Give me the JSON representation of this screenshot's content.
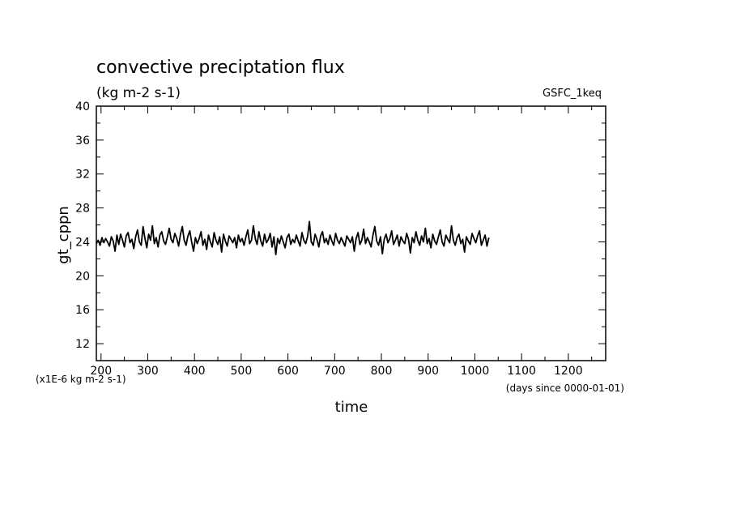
{
  "chart_data": {
    "type": "line",
    "title": "convective preciptation flux",
    "subtitle": "(kg m-2 s-1)",
    "run_label": "GSFC_1keq",
    "xlabel": "time",
    "ylabel": "gt_cppn",
    "x_unit_note": "(days since 0000-01-01)",
    "y_scale_note": "(x1E-6 kg m-2 s-1)",
    "xlim": [
      190,
      1280
    ],
    "ylim": [
      10,
      40
    ],
    "x_ticks": [
      200,
      300,
      400,
      500,
      600,
      700,
      800,
      900,
      1000,
      1100,
      1200
    ],
    "x_tick_labels": [
      "200",
      "300",
      "400",
      "500",
      "600",
      "700",
      "800",
      "900",
      "1000",
      "1100",
      "1200"
    ],
    "y_ticks": [
      12,
      16,
      20,
      24,
      28,
      32,
      36,
      40
    ],
    "y_tick_labels": [
      "12",
      "16",
      "20",
      "24",
      "28",
      "32",
      "36",
      "40"
    ],
    "grid": false,
    "line_color": "#000000",
    "series": [
      {
        "x_start": 190,
        "x_step": 4,
        "values": [
          23.8,
          24.2,
          23.6,
          24.5,
          23.9,
          24.4,
          24.0,
          23.5,
          24.6,
          24.1,
          22.9,
          24.8,
          23.7,
          24.9,
          24.2,
          23.4,
          24.7,
          25.1,
          23.9,
          24.3,
          23.2,
          24.6,
          25.4,
          24.0,
          23.6,
          25.8,
          24.4,
          23.3,
          24.9,
          24.2,
          25.9,
          23.8,
          24.5,
          23.4,
          24.8,
          25.2,
          24.1,
          23.7,
          24.6,
          25.6,
          24.3,
          23.9,
          25.0,
          24.4,
          23.5,
          24.9,
          25.8,
          24.2,
          23.6,
          24.7,
          25.3,
          24.0,
          22.9,
          24.5,
          23.8,
          24.4,
          25.2,
          23.6,
          24.3,
          23.1,
          24.8,
          24.0,
          23.4,
          25.1,
          24.2,
          23.7,
          24.6,
          22.8,
          24.9,
          24.1,
          23.5,
          24.7,
          24.3,
          23.9,
          24.5,
          23.3,
          24.8,
          24.0,
          24.4,
          23.6,
          24.6,
          25.4,
          23.8,
          24.2,
          25.9,
          24.4,
          23.7,
          25.2,
          24.1,
          23.5,
          24.9,
          23.9,
          24.3,
          25.0,
          23.4,
          24.6,
          22.5,
          24.4,
          23.8,
          24.7,
          24.0,
          23.3,
          24.5,
          24.9,
          23.7,
          24.3,
          23.9,
          24.8,
          24.1,
          23.5,
          25.1,
          24.2,
          23.8,
          24.6,
          26.4,
          24.0,
          23.6,
          24.9,
          24.3,
          23.4,
          24.7,
          25.2,
          23.9,
          24.4,
          23.7,
          24.8,
          24.1,
          23.6,
          25.0,
          24.2,
          23.8,
          24.5,
          24.0,
          23.5,
          24.7,
          24.3,
          23.9,
          24.6,
          22.9,
          24.4,
          25.1,
          23.7,
          24.2,
          25.5,
          23.8,
          24.5,
          24.0,
          23.4,
          24.8,
          25.8,
          24.1,
          23.6,
          24.6,
          22.6,
          24.3,
          24.9,
          23.9,
          24.4,
          25.3,
          23.7,
          24.2,
          24.8,
          23.5,
          24.6,
          24.1,
          23.8,
          25.0,
          24.3,
          22.7,
          24.5,
          23.9,
          25.2,
          24.2,
          23.6,
          24.7,
          24.0,
          25.6,
          23.8,
          24.4,
          23.3,
          24.9,
          24.1,
          23.7,
          24.6,
          25.4,
          24.0,
          23.5,
          24.8,
          24.3,
          23.9,
          25.9,
          24.2,
          23.6,
          24.5,
          24.9,
          23.8,
          24.3,
          22.8,
          24.6,
          24.1,
          23.7,
          25.0,
          24.4,
          23.9,
          24.7,
          25.3,
          23.6,
          24.2,
          24.8,
          23.5,
          24.5
        ]
      }
    ]
  }
}
